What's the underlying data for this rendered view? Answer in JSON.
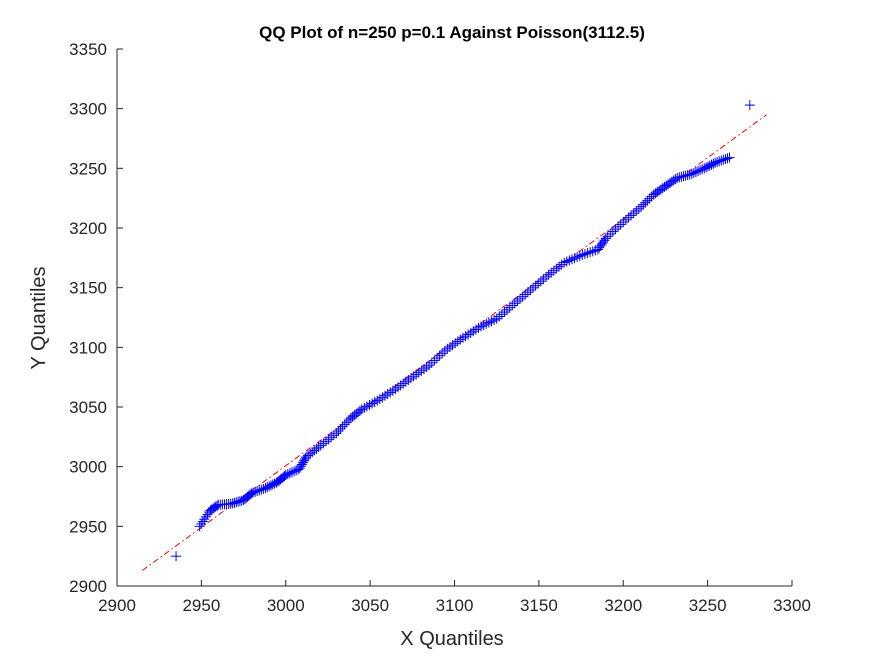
{
  "chart_data": {
    "type": "scatter",
    "title": "QQ Plot of n=250 p=0.1 Against Poisson(3112.5)",
    "xlabel": "X Quantiles",
    "ylabel": "Y Quantiles",
    "xlim": [
      2900,
      3300
    ],
    "ylim": [
      2900,
      3350
    ],
    "xticks": [
      2900,
      2950,
      3000,
      3050,
      3100,
      3150,
      3200,
      3250,
      3300
    ],
    "yticks": [
      2900,
      2950,
      3000,
      3050,
      3100,
      3150,
      3200,
      3250,
      3300,
      3350
    ],
    "grid": false,
    "legend": "none",
    "marker_color": "#0000ff",
    "reference_line_color": "#ff0000",
    "reference_line": {
      "style": "dash-dot",
      "x": [
        2915,
        3285
      ],
      "y": [
        2913,
        3295
      ]
    },
    "anchor_points": [
      [
        2935,
        2925
      ],
      [
        2949,
        2950
      ],
      [
        2955,
        2963
      ],
      [
        2960,
        2968
      ],
      [
        2968,
        2969
      ],
      [
        2975,
        2972
      ],
      [
        2980,
        2978
      ],
      [
        2988,
        2982
      ],
      [
        2995,
        2987
      ],
      [
        3000,
        2993
      ],
      [
        3008,
        2998
      ],
      [
        3012,
        3008
      ],
      [
        3020,
        3017
      ],
      [
        3030,
        3028
      ],
      [
        3038,
        3040
      ],
      [
        3045,
        3048
      ],
      [
        3055,
        3056
      ],
      [
        3065,
        3065
      ],
      [
        3075,
        3075
      ],
      [
        3085,
        3085
      ],
      [
        3095,
        3098
      ],
      [
        3105,
        3108
      ],
      [
        3115,
        3117
      ],
      [
        3125,
        3124
      ],
      [
        3135,
        3136
      ],
      [
        3145,
        3148
      ],
      [
        3155,
        3160
      ],
      [
        3165,
        3171
      ],
      [
        3175,
        3177
      ],
      [
        3185,
        3182
      ],
      [
        3190,
        3192
      ],
      [
        3200,
        3205
      ],
      [
        3210,
        3217
      ],
      [
        3218,
        3228
      ],
      [
        3225,
        3235
      ],
      [
        3232,
        3242
      ],
      [
        3240,
        3245
      ],
      [
        3248,
        3250
      ],
      [
        3255,
        3255
      ],
      [
        3263,
        3259
      ],
      [
        3275,
        3303
      ]
    ],
    "n_points": 250
  }
}
